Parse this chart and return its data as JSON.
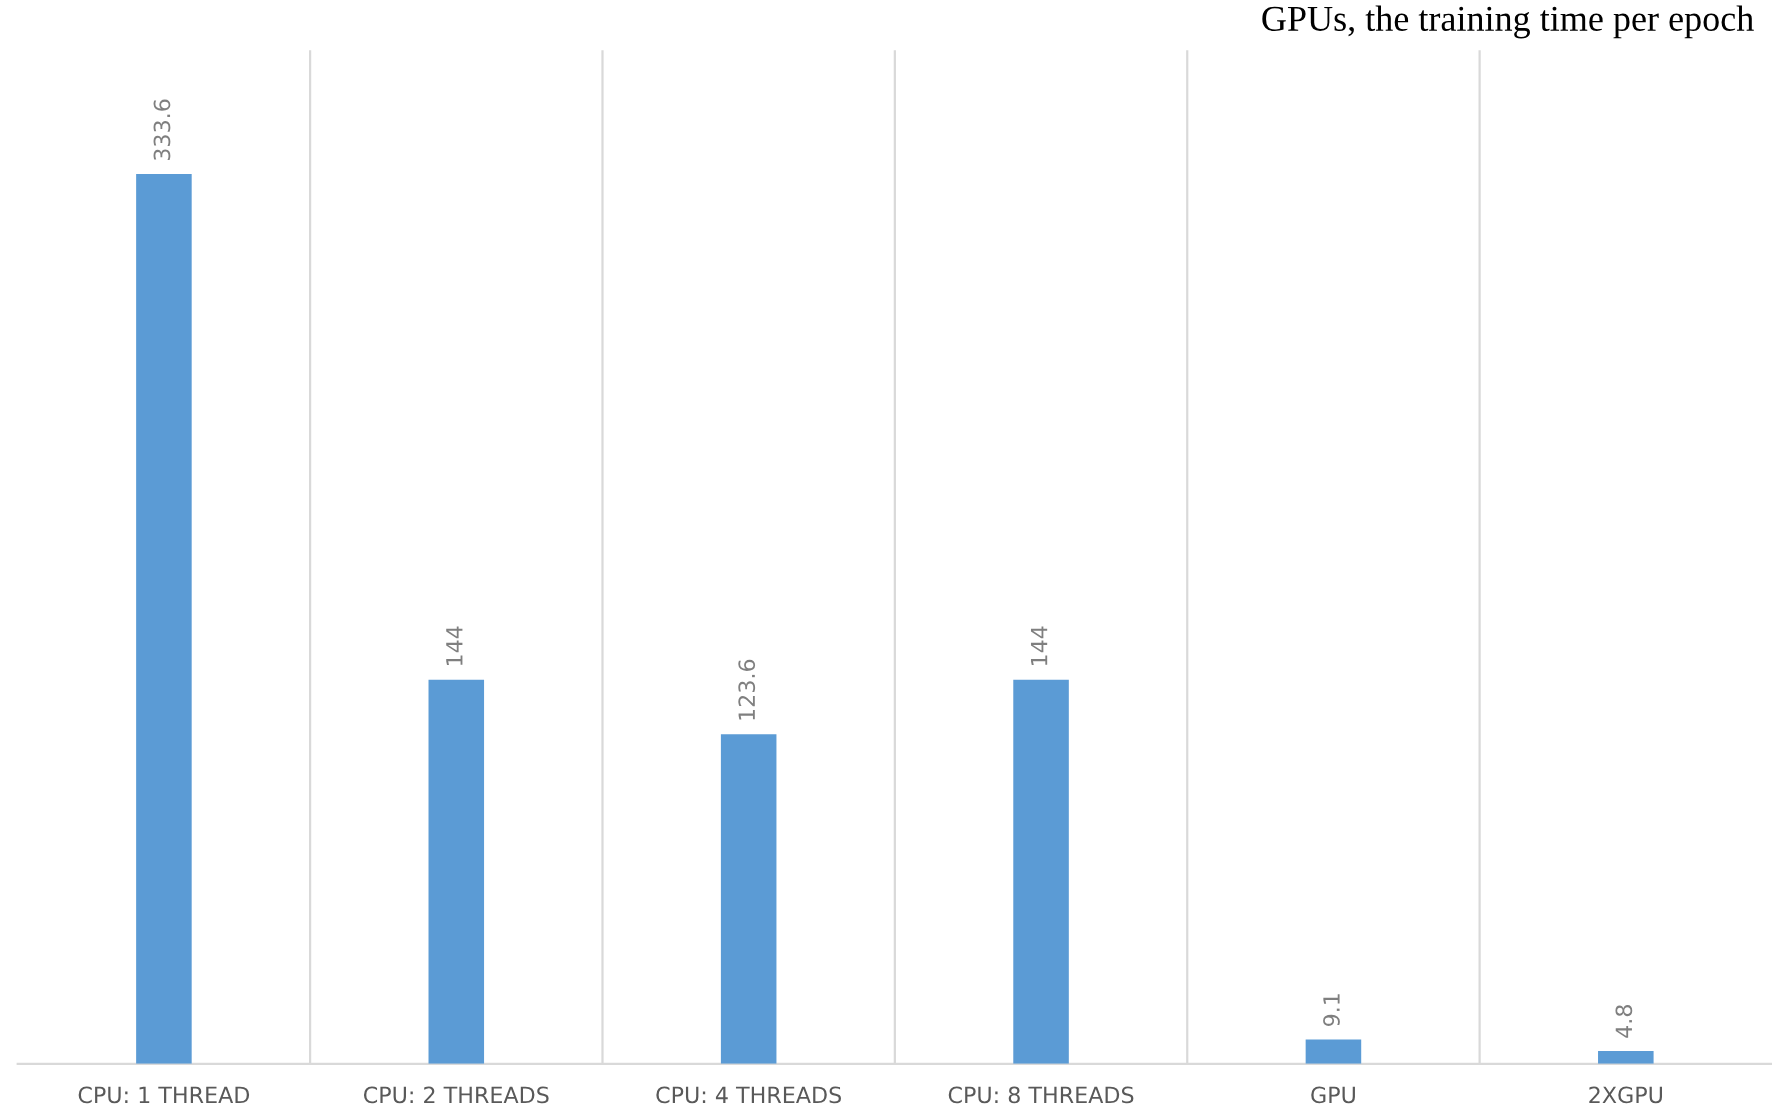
{
  "chart_data": {
    "type": "bar",
    "categories": [
      "CPU: 1 THREAD",
      "CPU: 2 THREADS",
      "CPU: 4 THREADS",
      "CPU: 8 THREADS",
      "GPU",
      "2XGPU"
    ],
    "values": [
      333.6,
      144,
      123.6,
      144,
      9.1,
      4.8
    ],
    "color": "#5b9bd5",
    "ylim": [
      0,
      380
    ],
    "grid": "x",
    "data_labels": true,
    "annotations": [
      "GPUs, the training time per epoch"
    ]
  }
}
